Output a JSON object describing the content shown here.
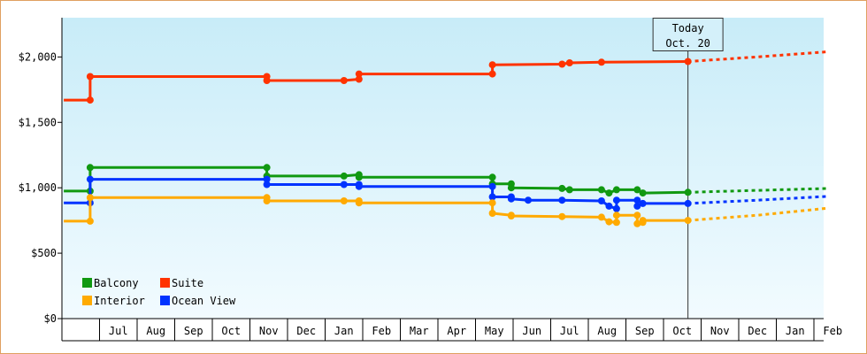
{
  "chart_data": {
    "type": "line",
    "step": true,
    "title": "",
    "xlabel": "",
    "ylabel": "",
    "ylim": [
      0,
      2300
    ],
    "yticks": [
      {
        "value": 0,
        "label": "$0"
      },
      {
        "value": 500,
        "label": "$500"
      },
      {
        "value": 1000,
        "label": "$1,000"
      },
      {
        "value": 1500,
        "label": "$1,500"
      },
      {
        "value": 2000,
        "label": "$2,000"
      }
    ],
    "x_range": [
      -0.45,
      19.9
    ],
    "x_month_slots": [
      {
        "index": 0,
        "label": ""
      },
      {
        "index": 1,
        "label": "Jul"
      },
      {
        "index": 2,
        "label": "Aug"
      },
      {
        "index": 3,
        "label": "Sep"
      },
      {
        "index": 4,
        "label": "Oct"
      },
      {
        "index": 5,
        "label": "Nov"
      },
      {
        "index": 6,
        "label": "Dec"
      },
      {
        "index": 7,
        "label": "Jan"
      },
      {
        "index": 8,
        "label": "Feb"
      },
      {
        "index": 9,
        "label": "Mar"
      },
      {
        "index": 10,
        "label": "Apr"
      },
      {
        "index": 11,
        "label": "May"
      },
      {
        "index": 12,
        "label": "Jun"
      },
      {
        "index": 13,
        "label": "Jul"
      },
      {
        "index": 14,
        "label": "Aug"
      },
      {
        "index": 15,
        "label": "Sep"
      },
      {
        "index": 16,
        "label": "Oct"
      },
      {
        "index": 17,
        "label": "Nov"
      },
      {
        "index": 18,
        "label": "Dec"
      },
      {
        "index": 19,
        "label": "Jan"
      },
      {
        "index": 20,
        "label": "Feb"
      }
    ],
    "today": {
      "x": 16.15,
      "label_line1": "Today",
      "label_line2": "Oct. 20"
    },
    "grid": false,
    "legend": {
      "placement": "bottom-left"
    },
    "series": [
      {
        "name": "Suite",
        "color": "#ff3300",
        "points": [
          [
            -0.45,
            1670
          ],
          [
            0.25,
            1670
          ],
          [
            0.25,
            1850
          ],
          [
            4.95,
            1850
          ],
          [
            4.95,
            1820
          ],
          [
            7.0,
            1820
          ],
          [
            7.4,
            1830
          ],
          [
            7.4,
            1870
          ],
          [
            10.95,
            1870
          ],
          [
            10.95,
            1940
          ],
          [
            12.8,
            1945
          ],
          [
            13.0,
            1955
          ],
          [
            13.85,
            1960
          ],
          [
            16.15,
            1965
          ]
        ],
        "forecast": [
          [
            16.15,
            1965
          ],
          [
            18.0,
            2000
          ],
          [
            19.9,
            2040
          ]
        ]
      },
      {
        "name": "Balcony",
        "color": "#119911",
        "points": [
          [
            -0.45,
            975
          ],
          [
            0.25,
            975
          ],
          [
            0.25,
            1155
          ],
          [
            4.95,
            1155
          ],
          [
            4.95,
            1090
          ],
          [
            7.0,
            1090
          ],
          [
            7.4,
            1100
          ],
          [
            7.4,
            1080
          ],
          [
            10.95,
            1080
          ],
          [
            10.95,
            1030
          ],
          [
            11.45,
            1030
          ],
          [
            11.45,
            1000
          ],
          [
            12.8,
            995
          ],
          [
            13.0,
            985
          ],
          [
            13.85,
            985
          ],
          [
            14.05,
            960
          ],
          [
            14.25,
            985
          ],
          [
            14.8,
            985
          ],
          [
            14.95,
            960
          ],
          [
            16.15,
            965
          ]
        ],
        "forecast": [
          [
            16.15,
            965
          ],
          [
            18.0,
            980
          ],
          [
            19.9,
            995
          ]
        ]
      },
      {
        "name": "Ocean View",
        "color": "#0033ff",
        "points": [
          [
            -0.45,
            885
          ],
          [
            0.25,
            885
          ],
          [
            0.25,
            1065
          ],
          [
            4.95,
            1065
          ],
          [
            4.95,
            1025
          ],
          [
            7.0,
            1025
          ],
          [
            7.4,
            1025
          ],
          [
            7.4,
            1010
          ],
          [
            10.95,
            1010
          ],
          [
            10.95,
            930
          ],
          [
            11.45,
            930
          ],
          [
            11.45,
            915
          ],
          [
            11.9,
            905
          ],
          [
            12.8,
            905
          ],
          [
            13.85,
            900
          ],
          [
            14.05,
            860
          ],
          [
            14.25,
            840
          ],
          [
            14.25,
            905
          ],
          [
            14.8,
            905
          ],
          [
            14.8,
            860
          ],
          [
            14.95,
            880
          ],
          [
            16.15,
            880
          ]
        ],
        "forecast": [
          [
            16.15,
            880
          ],
          [
            18.0,
            905
          ],
          [
            19.9,
            935
          ]
        ]
      },
      {
        "name": "Interior",
        "color": "#ffaa00",
        "points": [
          [
            -0.45,
            745
          ],
          [
            0.25,
            745
          ],
          [
            0.25,
            925
          ],
          [
            4.95,
            925
          ],
          [
            4.95,
            900
          ],
          [
            7.0,
            900
          ],
          [
            7.4,
            900
          ],
          [
            7.4,
            885
          ],
          [
            10.95,
            885
          ],
          [
            10.95,
            805
          ],
          [
            11.45,
            790
          ],
          [
            11.45,
            785
          ],
          [
            12.8,
            780
          ],
          [
            13.85,
            775
          ],
          [
            14.05,
            740
          ],
          [
            14.25,
            735
          ],
          [
            14.25,
            790
          ],
          [
            14.8,
            790
          ],
          [
            14.8,
            725
          ],
          [
            14.95,
            735
          ],
          [
            14.95,
            750
          ],
          [
            16.15,
            750
          ]
        ],
        "forecast": [
          [
            16.15,
            750
          ],
          [
            18.0,
            790
          ],
          [
            19.9,
            845
          ]
        ]
      }
    ]
  },
  "legend_items": [
    {
      "name": "Balcony",
      "color": "#119911"
    },
    {
      "name": "Suite",
      "color": "#ff3300"
    },
    {
      "name": "Interior",
      "color": "#ffaa00"
    },
    {
      "name": "Ocean View",
      "color": "#0033ff"
    }
  ]
}
